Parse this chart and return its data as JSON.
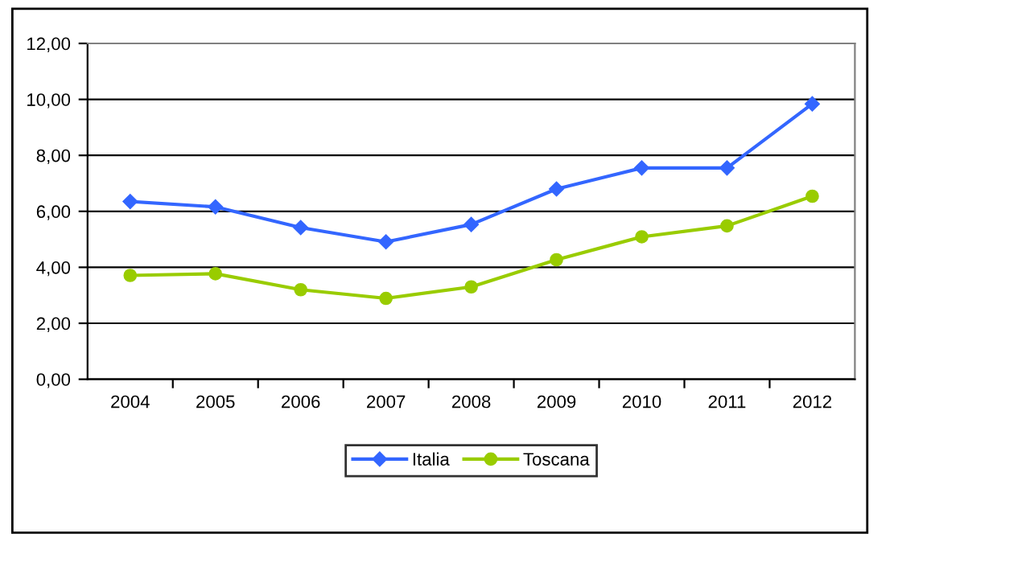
{
  "chart_data": {
    "type": "line",
    "categories": [
      "2004",
      "2005",
      "2006",
      "2007",
      "2008",
      "2009",
      "2010",
      "2011",
      "2012"
    ],
    "series": [
      {
        "name": "Italia",
        "color": "#3366ff",
        "marker": "diamond",
        "values": [
          6.35,
          6.16,
          5.42,
          4.91,
          5.53,
          6.8,
          7.55,
          7.55,
          9.84
        ]
      },
      {
        "name": "Toscana",
        "color": "#99cc00",
        "marker": "circle",
        "values": [
          3.71,
          3.77,
          3.2,
          2.89,
          3.3,
          4.27,
          5.09,
          5.48,
          6.54
        ]
      }
    ],
    "ylim": [
      0,
      12
    ],
    "yticks": [
      {
        "value": 0,
        "label": "0,00"
      },
      {
        "value": 2,
        "label": "2,00"
      },
      {
        "value": 4,
        "label": "4,00"
      },
      {
        "value": 6,
        "label": "6,00"
      },
      {
        "value": 8,
        "label": "8,00"
      },
      {
        "value": 10,
        "label": "10,00"
      },
      {
        "value": 12,
        "label": "12,00"
      }
    ],
    "grid": "y",
    "legend": "bottom",
    "line_style": "solid"
  }
}
